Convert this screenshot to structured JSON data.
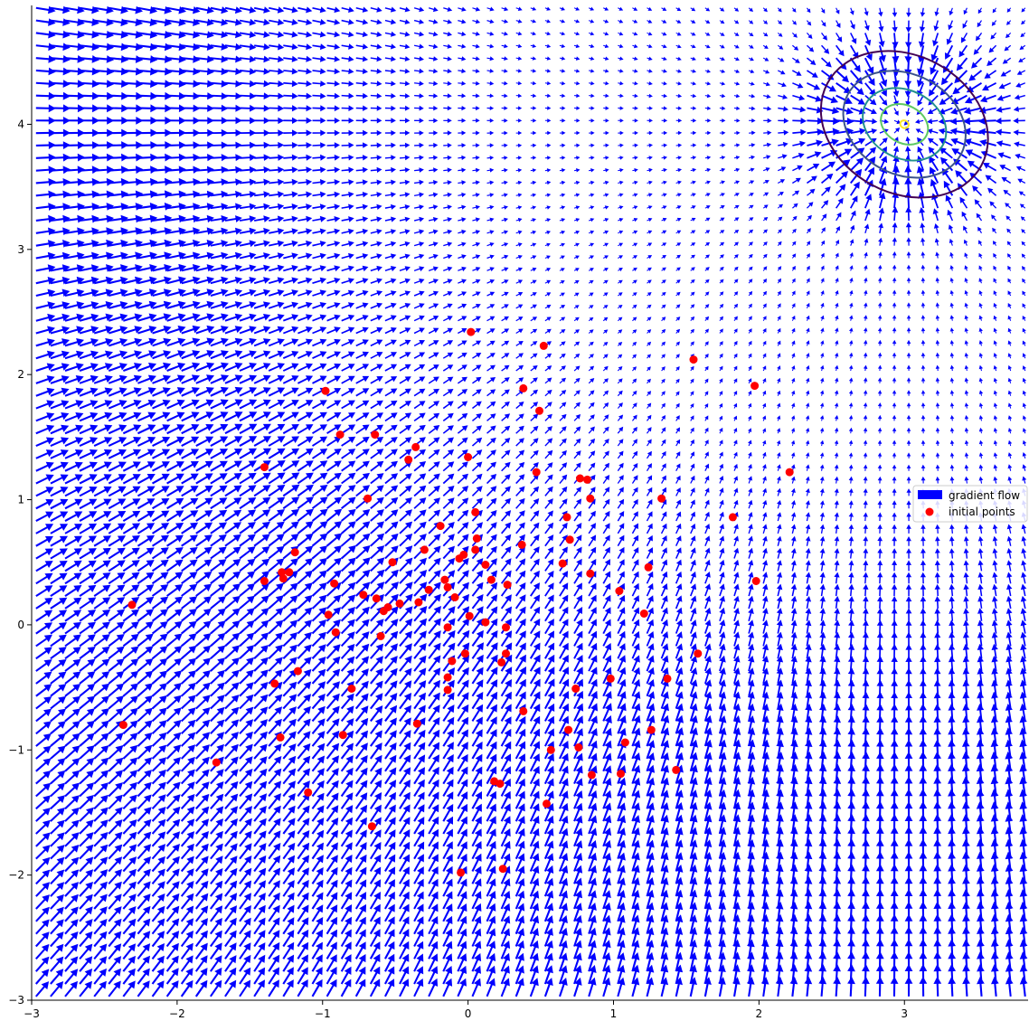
{
  "chart_data": {
    "type": "quiver+scatter",
    "title": "",
    "xlabel": "",
    "ylabel": "",
    "xlim": [
      -3,
      3.85
    ],
    "ylim": [
      -3,
      4.95
    ],
    "xticks": [
      -3,
      -2,
      -1,
      0,
      1,
      2,
      3
    ],
    "xtick_labels": [
      "−3",
      "−2",
      "−1",
      "0",
      "1",
      "2",
      "3"
    ],
    "yticks": [
      -3,
      -2,
      -1,
      0,
      1,
      2,
      3,
      4
    ],
    "ytick_labels": [
      "−3",
      "−2",
      "−1",
      "0",
      "1",
      "2",
      "3",
      "4"
    ],
    "grid": false,
    "legend_position": "center-right",
    "legend": [
      {
        "label": "gradient flow",
        "marker": "arrow-patch"
      },
      {
        "label": "initial points",
        "marker": "circle"
      }
    ],
    "colors": {
      "arrows": "#0000ff",
      "points": "#ff0000",
      "contours": [
        "#440154",
        "#3b528b",
        "#21918c",
        "#5ec962",
        "#fde725"
      ]
    },
    "field": {
      "description": "gradient flow towards Gaussian-like peak",
      "peak": [
        3.0,
        4.0
      ],
      "grid_step": 0.1
    },
    "contours": {
      "center": [
        3.0,
        4.0
      ],
      "levels": [
        {
          "rx": 0.6,
          "ry": 0.55
        },
        {
          "rx": 0.44,
          "ry": 0.4
        },
        {
          "rx": 0.3,
          "ry": 0.27
        },
        {
          "rx": 0.17,
          "ry": 0.15
        },
        {
          "rx": 0.03,
          "ry": 0.03
        }
      ]
    },
    "points": [
      [
        0.02,
        2.34
      ],
      [
        0.52,
        2.23
      ],
      [
        1.55,
        2.12
      ],
      [
        1.97,
        1.91
      ],
      [
        -0.98,
        1.87
      ],
      [
        0.38,
        1.89
      ],
      [
        0.49,
        1.71
      ],
      [
        -0.88,
        1.52
      ],
      [
        -0.64,
        1.52
      ],
      [
        -0.36,
        1.42
      ],
      [
        -0.41,
        1.32
      ],
      [
        0.0,
        1.34
      ],
      [
        -1.4,
        1.26
      ],
      [
        0.47,
        1.22
      ],
      [
        0.77,
        1.17
      ],
      [
        0.82,
        1.16
      ],
      [
        2.21,
        1.22
      ],
      [
        -0.69,
        1.01
      ],
      [
        0.84,
        1.01
      ],
      [
        1.33,
        1.01
      ],
      [
        0.05,
        0.9
      ],
      [
        0.68,
        0.86
      ],
      [
        1.82,
        0.86
      ],
      [
        -0.19,
        0.79
      ],
      [
        0.06,
        0.69
      ],
      [
        0.7,
        0.68
      ],
      [
        0.37,
        0.64
      ],
      [
        -1.19,
        0.58
      ],
      [
        -0.3,
        0.6
      ],
      [
        0.05,
        0.6
      ],
      [
        -0.03,
        0.56
      ],
      [
        -0.06,
        0.53
      ],
      [
        -0.52,
        0.5
      ],
      [
        0.12,
        0.48
      ],
      [
        0.65,
        0.49
      ],
      [
        1.24,
        0.46
      ],
      [
        -1.28,
        0.42
      ],
      [
        -1.23,
        0.42
      ],
      [
        -1.27,
        0.37
      ],
      [
        0.84,
        0.41
      ],
      [
        -1.4,
        0.35
      ],
      [
        -0.92,
        0.33
      ],
      [
        -0.16,
        0.36
      ],
      [
        0.16,
        0.36
      ],
      [
        0.27,
        0.32
      ],
      [
        -0.14,
        0.3
      ],
      [
        1.98,
        0.35
      ],
      [
        -0.27,
        0.28
      ],
      [
        1.04,
        0.27
      ],
      [
        -0.72,
        0.24
      ],
      [
        -0.63,
        0.21
      ],
      [
        -0.09,
        0.22
      ],
      [
        -2.31,
        0.16
      ],
      [
        -0.34,
        0.18
      ],
      [
        -0.47,
        0.17
      ],
      [
        -0.55,
        0.14
      ],
      [
        -0.58,
        0.11
      ],
      [
        1.21,
        0.09
      ],
      [
        -0.96,
        0.08
      ],
      [
        0.01,
        0.07
      ],
      [
        0.12,
        0.02
      ],
      [
        -0.14,
        -0.02
      ],
      [
        0.26,
        -0.02
      ],
      [
        -0.91,
        -0.06
      ],
      [
        -0.6,
        -0.09
      ],
      [
        1.58,
        -0.23
      ],
      [
        0.26,
        -0.23
      ],
      [
        -0.02,
        -0.23
      ],
      [
        -0.11,
        -0.29
      ],
      [
        0.23,
        -0.3
      ],
      [
        -1.17,
        -0.37
      ],
      [
        -0.14,
        -0.42
      ],
      [
        0.98,
        -0.43
      ],
      [
        1.37,
        -0.43
      ],
      [
        -1.33,
        -0.47
      ],
      [
        -0.8,
        -0.51
      ],
      [
        -0.14,
        -0.52
      ],
      [
        0.74,
        -0.51
      ],
      [
        0.38,
        -0.69
      ],
      [
        -2.37,
        -0.8
      ],
      [
        -0.35,
        -0.79
      ],
      [
        0.69,
        -0.84
      ],
      [
        1.26,
        -0.84
      ],
      [
        -1.29,
        -0.9
      ],
      [
        -0.86,
        -0.88
      ],
      [
        1.08,
        -0.94
      ],
      [
        0.57,
        -1.0
      ],
      [
        0.76,
        -0.98
      ],
      [
        -1.73,
        -1.1
      ],
      [
        1.43,
        -1.16
      ],
      [
        0.85,
        -1.2
      ],
      [
        1.05,
        -1.19
      ],
      [
        0.18,
        -1.25
      ],
      [
        0.22,
        -1.27
      ],
      [
        -1.1,
        -1.34
      ],
      [
        0.54,
        -1.43
      ],
      [
        -0.66,
        -1.61
      ],
      [
        0.24,
        -1.95
      ],
      [
        -0.05,
        -1.98
      ]
    ]
  }
}
